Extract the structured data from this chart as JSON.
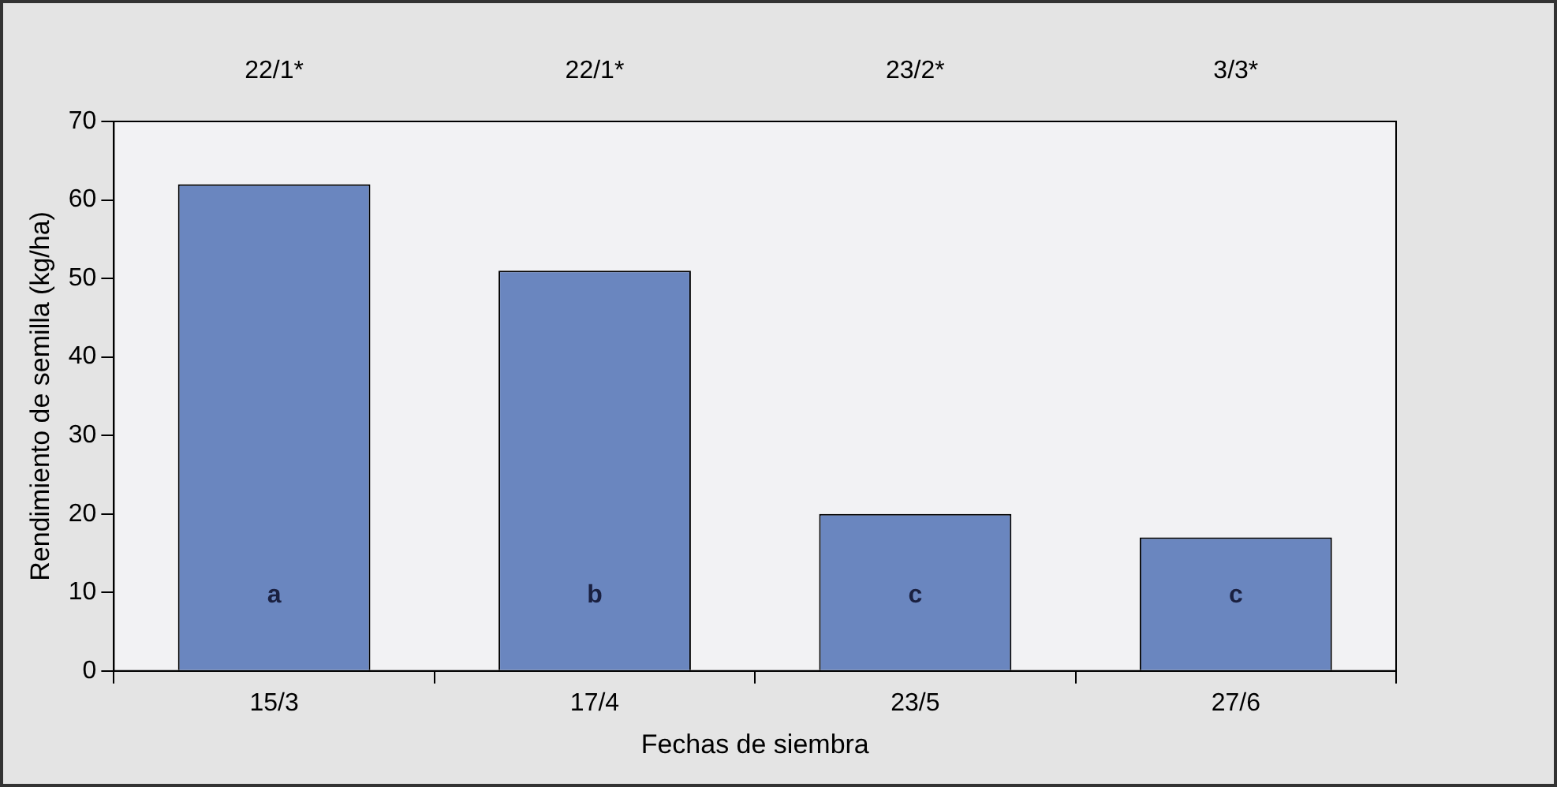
{
  "chart_data": {
    "type": "bar",
    "xlabel": "Fechas de siembra",
    "ylabel": "Rendimiento de semilla (kg/ha)",
    "categories": [
      "15/3",
      "17/4",
      "23/5",
      "27/6"
    ],
    "values": [
      62,
      51,
      20,
      17
    ],
    "color": "#6a86bf",
    "ylim": [
      0,
      70
    ],
    "yticks": [
      0,
      10,
      20,
      30,
      40,
      50,
      60,
      70
    ],
    "grid": false,
    "legend": false,
    "annotations": [
      "22/1*",
      "22/1*",
      "23/2*",
      "3/3*",
      "a",
      "b",
      "c",
      "c"
    ]
  }
}
